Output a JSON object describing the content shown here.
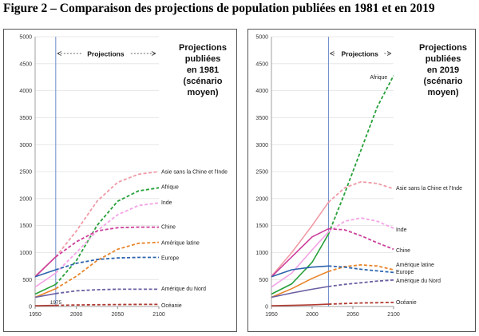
{
  "figure_title": "Figure 2 – Comparaison des projections de population publiées en 1981 et en 2019",
  "chart_data": [
    {
      "type": "line",
      "side_title": [
        "Projections",
        "publiées",
        "en 1981",
        "(scénario",
        "moyen)"
      ],
      "projection_label": "Projections",
      "projection_start": 1975,
      "projection_start_label": "1975",
      "x_ticks": [
        "1950",
        "2000",
        "2050",
        "2100"
      ],
      "y_ticks": [
        "0",
        "500",
        "1000",
        "1500",
        "2000",
        "2500",
        "3000",
        "3500",
        "4000",
        "4500",
        "5000"
      ],
      "xlim": [
        1950,
        2100
      ],
      "ylim": [
        0,
        5000
      ],
      "x": [
        1950,
        1975,
        2000,
        2025,
        2050,
        2075,
        2100
      ],
      "series": [
        {
          "name": "Asie sans la Chine et l'Inde",
          "color": "#f09aa6",
          "label_y": 2500,
          "solid": [
            560,
            920
          ],
          "values": [
            560,
            920,
            1400,
            1950,
            2300,
            2450,
            2500
          ]
        },
        {
          "name": "Afrique",
          "color": "#27a03a",
          "label_y": 2220,
          "solid": [
            230,
            410
          ],
          "values": [
            230,
            410,
            850,
            1500,
            1950,
            2140,
            2200
          ]
        },
        {
          "name": "Inde",
          "color": "#f4a3e6",
          "label_y": 1930,
          "solid": [
            360,
            620
          ],
          "values": [
            360,
            620,
            1000,
            1400,
            1700,
            1870,
            1920
          ]
        },
        {
          "name": "Chine",
          "color": "#cc3e9a",
          "label_y": 1480,
          "solid": [
            550,
            920
          ],
          "values": [
            550,
            920,
            1200,
            1400,
            1460,
            1470,
            1470
          ]
        },
        {
          "name": "Amérique latine",
          "color": "#e8852a",
          "label_y": 1180,
          "solid": [
            170,
            330
          ],
          "values": [
            170,
            330,
            560,
            850,
            1060,
            1170,
            1190
          ]
        },
        {
          "name": "Europe",
          "color": "#2c63ad",
          "label_y": 900,
          "solid": [
            550,
            680
          ],
          "values": [
            550,
            680,
            800,
            870,
            900,
            910,
            910
          ]
        },
        {
          "name": "Amérique du Nord",
          "color": "#6b5fa2",
          "label_y": 330,
          "solid": [
            170,
            240
          ],
          "values": [
            170,
            240,
            290,
            310,
            320,
            320,
            320
          ]
        },
        {
          "name": "Océanie",
          "color": "#b13a30",
          "label_y": 20,
          "solid": [
            13,
            21
          ],
          "values": [
            13,
            21,
            28,
            33,
            36,
            38,
            38
          ]
        }
      ]
    },
    {
      "type": "line",
      "side_title": [
        "Projections",
        "publiées",
        "en 2019",
        "(scénario",
        "moyen)"
      ],
      "projection_label": "Projections",
      "projection_start": 2020,
      "x_ticks": [
        "1950",
        "2000",
        "2050",
        "2100"
      ],
      "y_ticks": [
        "0",
        "500",
        "1000",
        "1500",
        "2000",
        "2500",
        "3000",
        "3500",
        "4000",
        "4500",
        "5000"
      ],
      "xlim": [
        1950,
        2100
      ],
      "ylim": [
        0,
        5000
      ],
      "x": [
        1950,
        1975,
        2000,
        2020,
        2040,
        2060,
        2080,
        2100
      ],
      "series": [
        {
          "name": "Afrique",
          "color": "#27a03a",
          "label_y": 4250,
          "label_x": 2071,
          "solid": [
            230,
            420,
            820,
            1340
          ],
          "values": [
            230,
            420,
            820,
            1340,
            2100,
            2900,
            3700,
            4280
          ]
        },
        {
          "name": "Asie sans la Chine et l'Inde",
          "color": "#f09aa6",
          "label_y": 2200,
          "solid": [
            560,
            1000,
            1500,
            1930
          ],
          "values": [
            560,
            1000,
            1500,
            1930,
            2200,
            2310,
            2280,
            2180
          ]
        },
        {
          "name": "Inde",
          "color": "#f4a3e6",
          "label_y": 1430,
          "solid": [
            360,
            620,
            1050,
            1380
          ],
          "values": [
            360,
            620,
            1050,
            1380,
            1580,
            1640,
            1580,
            1450
          ]
        },
        {
          "name": "Chine",
          "color": "#cc3e9a",
          "label_y": 1040,
          "solid": [
            550,
            920,
            1290,
            1440
          ],
          "values": [
            550,
            920,
            1290,
            1440,
            1420,
            1310,
            1180,
            1060
          ]
        },
        {
          "name": "Amérique latine",
          "color": "#e8852a",
          "label_y": 780,
          "solid": [
            170,
            330,
            520,
            650
          ],
          "values": [
            170,
            330,
            520,
            650,
            740,
            770,
            750,
            680
          ]
        },
        {
          "name": "Europe",
          "color": "#2c63ad",
          "label_y": 640,
          "solid": [
            550,
            680,
            730,
            750
          ],
          "values": [
            550,
            680,
            730,
            750,
            730,
            690,
            660,
            630
          ]
        },
        {
          "name": "Amérique du Nord",
          "color": "#6b5fa2",
          "label_y": 480,
          "solid": [
            170,
            250,
            320,
            370
          ],
          "values": [
            170,
            250,
            320,
            370,
            410,
            440,
            470,
            490
          ]
        },
        {
          "name": "Océanie",
          "color": "#b13a30",
          "label_y": 80,
          "solid": [
            13,
            21,
            31,
            43
          ],
          "values": [
            13,
            21,
            31,
            43,
            55,
            65,
            70,
            75
          ]
        }
      ]
    }
  ]
}
